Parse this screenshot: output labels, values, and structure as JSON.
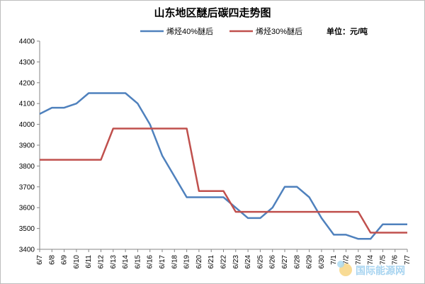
{
  "chart_data": {
    "type": "line",
    "title": "山东地区醚后碳四走势图",
    "unit_label": "单位：元/吨",
    "ylim": [
      3400,
      4400
    ],
    "yticks": [
      3400,
      3500,
      3600,
      3700,
      3800,
      3900,
      4000,
      4100,
      4200,
      4300,
      4400
    ],
    "grid": false,
    "legend_position": "top",
    "categories": [
      "6/7",
      "6/8",
      "6/9",
      "6/10",
      "6/11",
      "6/12",
      "6/13",
      "6/14",
      "6/15",
      "6/16",
      "6/17",
      "6/18",
      "6/19",
      "6/20",
      "6/21",
      "6/22",
      "6/23",
      "6/24",
      "6/25",
      "6/26",
      "6/27",
      "6/28",
      "6/29",
      "6/30",
      "7/1",
      "7/2",
      "7/3",
      "7/4",
      "7/5",
      "7/6",
      "7/7"
    ],
    "series": [
      {
        "name": "烯烃40%醚后",
        "color": "#4f81bd",
        "values": [
          4050,
          4080,
          4080,
          4100,
          4150,
          4150,
          4150,
          4150,
          4100,
          4000,
          3850,
          3750,
          3650,
          3650,
          3650,
          3650,
          3600,
          3550,
          3550,
          3600,
          3700,
          3700,
          3650,
          3550,
          3470,
          3470,
          3450,
          3450,
          3520,
          3520,
          3520
        ]
      },
      {
        "name": "烯烃30%醚后",
        "color": "#c0504d",
        "values": [
          3830,
          3830,
          3830,
          3830,
          3830,
          3830,
          3980,
          3980,
          3980,
          3980,
          3980,
          3980,
          3980,
          3680,
          3680,
          3680,
          3580,
          3580,
          3580,
          3580,
          3580,
          3580,
          3580,
          3580,
          3580,
          3580,
          3580,
          3480,
          3480,
          3480,
          3480
        ]
      }
    ]
  },
  "watermark": {
    "text": "国际能源网"
  }
}
